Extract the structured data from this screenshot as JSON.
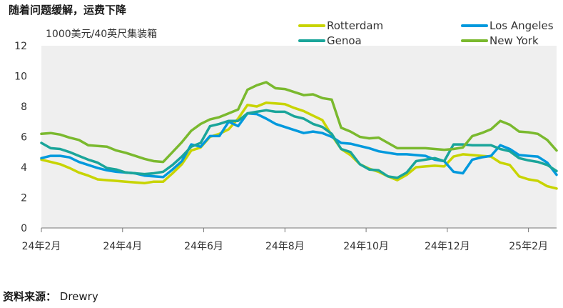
{
  "chart_data": {
    "type": "line",
    "title": "随着问题缓解，运费下降",
    "ylabel": "1000美元/40英尺集装箱",
    "xlabel": "",
    "ylim": [
      0,
      12
    ],
    "yticks": [
      0,
      2,
      4,
      6,
      8,
      10,
      12
    ],
    "grid": false,
    "legend_position": "top-right",
    "x_start": "24年2月",
    "x_ticks": [
      {
        "label": "24年2月",
        "pos": 0
      },
      {
        "label": "24年4月",
        "pos": 8.667
      },
      {
        "label": "24年6月",
        "pos": 17.333
      },
      {
        "label": "24年8月",
        "pos": 26
      },
      {
        "label": "24年10月",
        "pos": 34.667
      },
      {
        "label": "24年12月",
        "pos": 43.333
      },
      {
        "label": "25年2月",
        "pos": 52
      }
    ],
    "x": [
      0,
      1,
      2,
      3,
      4,
      5,
      6,
      7,
      8,
      9,
      10,
      11,
      12,
      13,
      14,
      15,
      16,
      17,
      18,
      19,
      20,
      21,
      22,
      23,
      24,
      25,
      26,
      27,
      28,
      29,
      30,
      31,
      32,
      33,
      34,
      35,
      36,
      37,
      38,
      39,
      40,
      41,
      42,
      43,
      44,
      45,
      46,
      47,
      48,
      49,
      50,
      51,
      52,
      53,
      54,
      55
    ],
    "series": [
      {
        "name": "Rotterdam",
        "color": "#c8d400",
        "values": [
          4.5,
          4.35,
          4.2,
          3.95,
          3.65,
          3.45,
          3.2,
          3.15,
          3.1,
          3.05,
          3.0,
          2.95,
          3.05,
          3.05,
          3.6,
          4.2,
          5.1,
          5.3,
          6.0,
          6.2,
          6.5,
          7.2,
          8.1,
          8.0,
          8.25,
          8.2,
          8.15,
          7.9,
          7.7,
          7.4,
          7.1,
          6.1,
          5.2,
          4.8,
          4.2,
          3.9,
          3.7,
          3.4,
          3.15,
          3.5,
          4.0,
          4.05,
          4.1,
          4.05,
          4.7,
          4.85,
          4.8,
          4.75,
          4.7,
          4.3,
          4.15,
          3.4,
          3.2,
          3.1,
          2.75,
          2.6
        ]
      },
      {
        "name": "Los Angeles",
        "color": "#0099dd",
        "values": [
          4.6,
          4.75,
          4.75,
          4.65,
          4.35,
          4.15,
          3.95,
          3.8,
          3.7,
          3.65,
          3.6,
          3.45,
          3.4,
          3.35,
          3.85,
          4.4,
          5.5,
          5.35,
          6.05,
          6.05,
          7.0,
          6.7,
          7.55,
          7.5,
          7.2,
          6.85,
          6.65,
          6.45,
          6.25,
          6.35,
          6.25,
          6.0,
          5.6,
          5.55,
          5.4,
          5.25,
          5.05,
          4.95,
          4.85,
          4.85,
          4.8,
          4.75,
          4.5,
          4.4,
          3.7,
          3.6,
          4.5,
          4.65,
          4.75,
          5.45,
          5.2,
          4.8,
          4.75,
          4.7,
          4.3,
          3.5
        ]
      },
      {
        "name": "Genoa",
        "color": "#1aa59a",
        "values": [
          5.6,
          5.25,
          5.2,
          5.0,
          4.75,
          4.5,
          4.3,
          3.95,
          3.85,
          3.65,
          3.6,
          3.55,
          3.6,
          3.7,
          4.15,
          4.7,
          5.35,
          5.6,
          6.7,
          6.85,
          7.05,
          7.05,
          7.55,
          7.65,
          7.75,
          7.65,
          7.65,
          7.35,
          7.2,
          6.85,
          6.65,
          6.2,
          5.2,
          5.0,
          4.2,
          3.85,
          3.8,
          3.4,
          3.3,
          3.65,
          4.4,
          4.5,
          4.6,
          4.4,
          5.5,
          5.5,
          5.45,
          5.45,
          5.45,
          5.2,
          5.05,
          4.6,
          4.45,
          4.35,
          4.15,
          3.75
        ]
      },
      {
        "name": "New York",
        "color": "#7ab92e",
        "values": [
          6.2,
          6.25,
          6.15,
          5.95,
          5.8,
          5.45,
          5.4,
          5.35,
          5.1,
          4.95,
          4.75,
          4.55,
          4.4,
          4.35,
          5.0,
          5.65,
          6.4,
          6.85,
          7.15,
          7.3,
          7.55,
          7.8,
          9.1,
          9.4,
          9.6,
          9.2,
          9.15,
          8.95,
          8.75,
          8.8,
          8.55,
          8.45,
          6.6,
          6.35,
          6.0,
          5.9,
          5.95,
          5.6,
          5.25,
          5.25,
          5.25,
          5.25,
          5.2,
          5.15,
          5.2,
          5.3,
          6.05,
          6.25,
          6.5,
          7.05,
          6.8,
          6.35,
          6.3,
          6.2,
          5.8,
          5.1
        ]
      }
    ]
  },
  "source": {
    "label": "资料来源：",
    "value": "Drewry"
  }
}
